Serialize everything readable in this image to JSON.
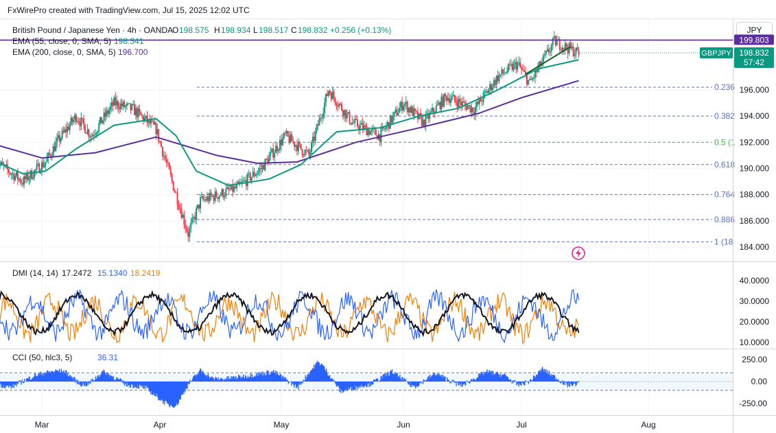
{
  "header": {
    "caption": "FxWirePro created with TradingView.com, Jul 15, 2025 12:02 UTC"
  },
  "legend": {
    "symbol": "British Pound / Japanese Yen · 4h · OANDA",
    "ohlc": [
      {
        "k": "O",
        "v": "198.575"
      },
      {
        "k": "H",
        "v": "198.934"
      },
      {
        "k": "L",
        "v": "198.517"
      },
      {
        "k": "C",
        "v": "198.832"
      }
    ],
    "change": "+0.256 (+0.13%)",
    "ema55": {
      "label": "EMA (55, close, 0, SMA, 5)",
      "value": "198.341",
      "color": "#089981"
    },
    "ema200": {
      "label": "EMA (200, close, 0, SMA, 5)",
      "value": "196.700",
      "color": "#5b2c9f"
    }
  },
  "currency_button": "JPY",
  "price_tags": {
    "resistance": "199.803",
    "symbol": "GBPJPY",
    "last": "198.832",
    "countdown": "57:42"
  },
  "fib_labels": [
    "0.236",
    "0.382",
    "0.5 (1",
    "0.618",
    "0.764",
    "0.886",
    "1 (18"
  ],
  "dmi_legend": {
    "label": "DMI (14, 14)",
    "adx": "17.2472",
    "plus": "15.1340",
    "minus": "18.2419"
  },
  "cci_legend": {
    "label": "CCI (50, hlc3, 5)",
    "value": "36.31"
  },
  "colors": {
    "up": "#089981",
    "down": "#f23645",
    "ema55": "#089981",
    "ema200": "#5b2c9f",
    "dmi_plus": "#2962ff",
    "dmi_minus": "#f57c00",
    "adx": "#131722",
    "cci": "#2962ff",
    "fib_blue": "#5b6fc2",
    "fib_green": "#4caf50",
    "resistance": "#5b2c9f"
  },
  "chart_data": [
    {
      "type": "candlestick",
      "symbol": "GBPJPY",
      "timeframe": "4h",
      "x_ticks": [
        "Mar",
        "Apr",
        "May",
        "Jun",
        "Jul",
        "Aug"
      ],
      "y_ticks": [
        "184.000",
        "186.000",
        "188.000",
        "190.000",
        "192.000",
        "194.000",
        "196.000"
      ],
      "ylim": [
        183.0,
        200.5
      ],
      "resistance": 199.803,
      "last": 198.832,
      "fib_levels": [
        {
          "label": "0.236",
          "value": 196.2
        },
        {
          "label": "0.382",
          "value": 194.0
        },
        {
          "label": "0.5 (1",
          "value": 192.0
        },
        {
          "label": "0.618",
          "value": 190.3
        },
        {
          "label": "0.764",
          "value": 188.0
        },
        {
          "label": "0.886",
          "value": 186.1
        },
        {
          "label": "1 (18",
          "value": 184.4
        }
      ],
      "close_path": [
        {
          "date": "2025-02-17",
          "close": 190.5
        },
        {
          "date": "2025-02-24",
          "close": 189.0
        },
        {
          "date": "2025-03-02",
          "close": 190.5
        },
        {
          "date": "2025-03-05",
          "close": 192.0
        },
        {
          "date": "2025-03-10",
          "close": 194.0
        },
        {
          "date": "2025-03-14",
          "close": 192.5
        },
        {
          "date": "2025-03-20",
          "close": 195.0
        },
        {
          "date": "2025-03-25",
          "close": 194.5
        },
        {
          "date": "2025-03-31",
          "close": 193.0
        },
        {
          "date": "2025-04-04",
          "close": 189.0
        },
        {
          "date": "2025-04-08",
          "close": 185.0
        },
        {
          "date": "2025-04-11",
          "close": 187.5
        },
        {
          "date": "2025-04-20",
          "close": 188.5
        },
        {
          "date": "2025-04-26",
          "close": 190.0
        },
        {
          "date": "2025-05-02",
          "close": 192.5
        },
        {
          "date": "2025-05-08",
          "close": 191.0
        },
        {
          "date": "2025-05-13",
          "close": 196.0
        },
        {
          "date": "2025-05-19",
          "close": 193.5
        },
        {
          "date": "2025-05-26",
          "close": 192.5
        },
        {
          "date": "2025-06-01",
          "close": 195.0
        },
        {
          "date": "2025-06-06",
          "close": 193.5
        },
        {
          "date": "2025-06-12",
          "close": 195.5
        },
        {
          "date": "2025-06-19",
          "close": 194.5
        },
        {
          "date": "2025-06-25",
          "close": 197.0
        },
        {
          "date": "2025-06-30",
          "close": 198.0
        },
        {
          "date": "2025-07-03",
          "close": 196.5
        },
        {
          "date": "2025-07-09",
          "close": 199.7
        },
        {
          "date": "2025-07-15",
          "close": 198.8
        }
      ],
      "ema55": [
        {
          "date": "2025-02-17",
          "value": 190.5
        },
        {
          "date": "2025-02-24",
          "value": 189.6
        },
        {
          "date": "2025-03-02",
          "value": 189.8
        },
        {
          "date": "2025-03-10",
          "value": 191.5
        },
        {
          "date": "2025-03-20",
          "value": 193.3
        },
        {
          "date": "2025-03-31",
          "value": 193.8
        },
        {
          "date": "2025-04-05",
          "value": 192.5
        },
        {
          "date": "2025-04-10",
          "value": 189.8
        },
        {
          "date": "2025-04-18",
          "value": 188.7
        },
        {
          "date": "2025-04-28",
          "value": 189.2
        },
        {
          "date": "2025-05-06",
          "value": 190.3
        },
        {
          "date": "2025-05-15",
          "value": 192.8
        },
        {
          "date": "2025-05-26",
          "value": 193.1
        },
        {
          "date": "2025-06-05",
          "value": 194.0
        },
        {
          "date": "2025-06-15",
          "value": 194.6
        },
        {
          "date": "2025-06-25",
          "value": 196.0
        },
        {
          "date": "2025-07-05",
          "value": 197.6
        },
        {
          "date": "2025-07-15",
          "value": 198.3
        }
      ],
      "ema200": [
        {
          "date": "2025-02-17",
          "value": 191.8
        },
        {
          "date": "2025-03-01",
          "value": 190.8
        },
        {
          "date": "2025-03-15",
          "value": 191.2
        },
        {
          "date": "2025-03-31",
          "value": 192.4
        },
        {
          "date": "2025-04-15",
          "value": 191.0
        },
        {
          "date": "2025-04-25",
          "value": 190.4
        },
        {
          "date": "2025-05-05",
          "value": 190.5
        },
        {
          "date": "2025-05-20",
          "value": 192.0
        },
        {
          "date": "2025-06-05",
          "value": 193.1
        },
        {
          "date": "2025-06-20",
          "value": 194.2
        },
        {
          "date": "2025-07-01",
          "value": 195.4
        },
        {
          "date": "2025-07-15",
          "value": 196.7
        }
      ]
    },
    {
      "type": "line",
      "indicator": "DMI (14, 14)",
      "y_ticks": [
        "10.0000",
        "20.0000",
        "30.0000",
        "40.0000"
      ],
      "ylim": [
        5,
        42
      ],
      "series": [
        {
          "name": "ADX",
          "last": 17.2472
        },
        {
          "name": "+DI",
          "last": 15.134
        },
        {
          "name": "-DI",
          "last": 18.2419
        }
      ]
    },
    {
      "type": "histogram",
      "indicator": "CCI (50, hlc3, 5)",
      "y_ticks": [
        "250.00",
        "0.00",
        "-250.00"
      ],
      "ylim": [
        -330,
        330
      ],
      "band": [
        -100,
        100
      ],
      "last": 36.31
    }
  ]
}
